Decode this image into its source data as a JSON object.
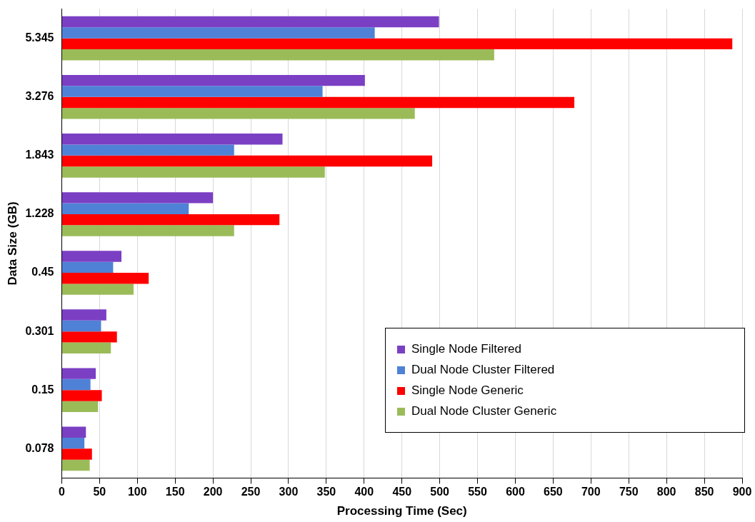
{
  "chart_data": {
    "type": "bar",
    "orientation": "horizontal",
    "xlabel": "Processing Time (Sec)",
    "ylabel": "Data Size (GB)",
    "categories": [
      "5.345",
      "3.276",
      "1.843",
      "1.228",
      "0.45",
      "0.301",
      "0.15",
      "0.078"
    ],
    "series": [
      {
        "name": "Single Node Filtered",
        "color": "#7b3fc4",
        "values": [
          499,
          401,
          292,
          200,
          79,
          59,
          45,
          32
        ]
      },
      {
        "name": "Dual Node Cluster Filtered",
        "color": "#4f81d6",
        "values": [
          414,
          345,
          228,
          168,
          68,
          52,
          38,
          30
        ]
      },
      {
        "name": "Single Node Generic",
        "color": "#ff0000",
        "values": [
          887,
          678,
          490,
          288,
          115,
          73,
          53,
          40
        ]
      },
      {
        "name": "Dual Node Cluster Generic",
        "color": "#9bbb59",
        "values": [
          572,
          467,
          348,
          228,
          95,
          65,
          48,
          37
        ]
      }
    ],
    "xlim": [
      0,
      900
    ],
    "xticks": [
      0,
      50,
      100,
      150,
      200,
      250,
      300,
      350,
      400,
      450,
      500,
      550,
      600,
      650,
      700,
      750,
      800,
      850,
      900
    ],
    "grid": "x",
    "legend": "bottom right"
  }
}
